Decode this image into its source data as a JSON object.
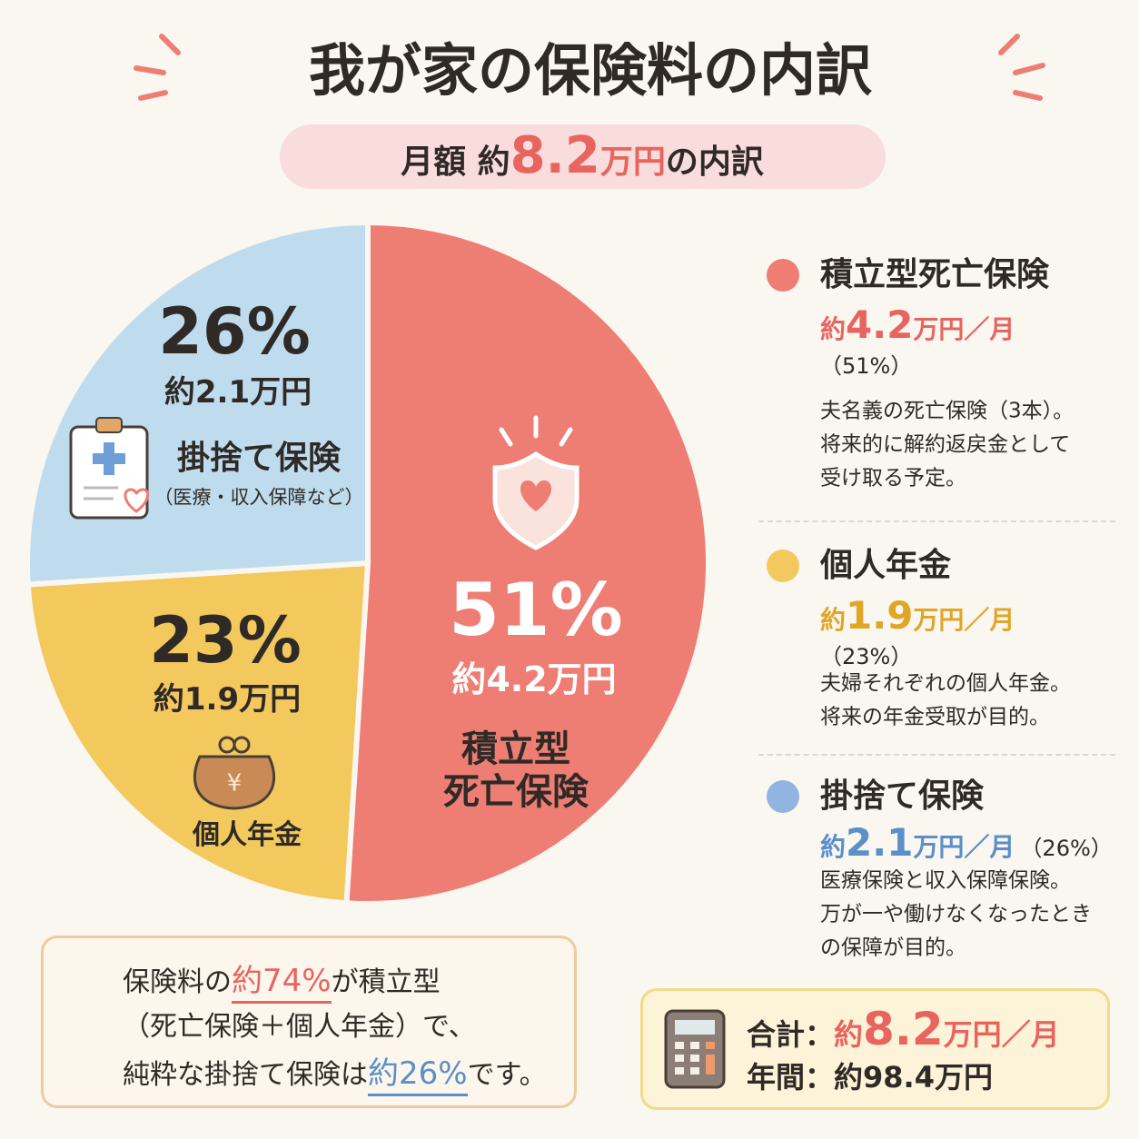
{
  "title": "我が家の保険料の内訳",
  "subtitle": {
    "prefix": "月額 約",
    "amount": "8.2",
    "unit": "万円",
    "suffix": "の内訳"
  },
  "chart_data": {
    "type": "pie",
    "categories": [
      "積立型死亡保険",
      "個人年金",
      "掛捨て保険"
    ],
    "values": [
      51,
      23,
      26
    ],
    "value_labels": [
      "51%",
      "23%",
      "26%"
    ],
    "colors": [
      "#ee7d74",
      "#f3c95e",
      "#bfdcee"
    ],
    "amount_labels": [
      "約4.2万円",
      "約1.9万円",
      "約2.1万円"
    ],
    "slice_labels": [
      [
        "積立型",
        "死亡保険"
      ],
      [
        "個人年金"
      ],
      [
        "掛捨て保険",
        "（医療・収入保障など）"
      ]
    ]
  },
  "legend": {
    "items": [
      {
        "dot_color": "#ee7d74",
        "text_color": "#e8655f",
        "amount": {
          "prefix": "約",
          "number": "4.2",
          "unit": "万円／月"
        },
        "percent": "（51%）",
        "description": [
          "夫名義の死亡保険（3本）。",
          "将来的に解約返戻金として",
          "受け取る予定。"
        ]
      },
      {
        "dot_color": "#f3c95e",
        "text_color": "#e0a628",
        "amount": {
          "prefix": "約",
          "number": "1.9",
          "unit": "万円／月"
        },
        "percent": "（23%）",
        "description": [
          "夫婦それぞれの個人年金。",
          "将来の年金受取が目的。"
        ]
      },
      {
        "dot_color": "#8fb5e0",
        "text_color": "#5b8fc8",
        "amount": {
          "prefix": "約",
          "number": "2.1",
          "unit": "万円／月"
        },
        "percent": "（26%）",
        "description": [
          "医療保険と収入保障保険。",
          "万が一や働けなくなったとき",
          "の保障が目的。"
        ]
      }
    ]
  },
  "note": {
    "lines": [
      [
        {
          "text": "保険料の"
        },
        {
          "text": "約74%",
          "highlight": "#e8655f"
        },
        {
          "text": "が積立型"
        }
      ],
      [
        {
          "text": "（死亡保険＋個人年金）で、"
        }
      ],
      [
        {
          "text": "純粋な掛捨て保険は"
        },
        {
          "text": "約26%",
          "highlight": "#5b8fc8"
        },
        {
          "text": "です。"
        }
      ]
    ]
  },
  "total": {
    "monthly": {
      "label": "合計：",
      "prefix": "約",
      "number": "8.2",
      "unit": "万円／月"
    },
    "annual": {
      "label": "年間：",
      "value": "約98.4万円"
    }
  }
}
